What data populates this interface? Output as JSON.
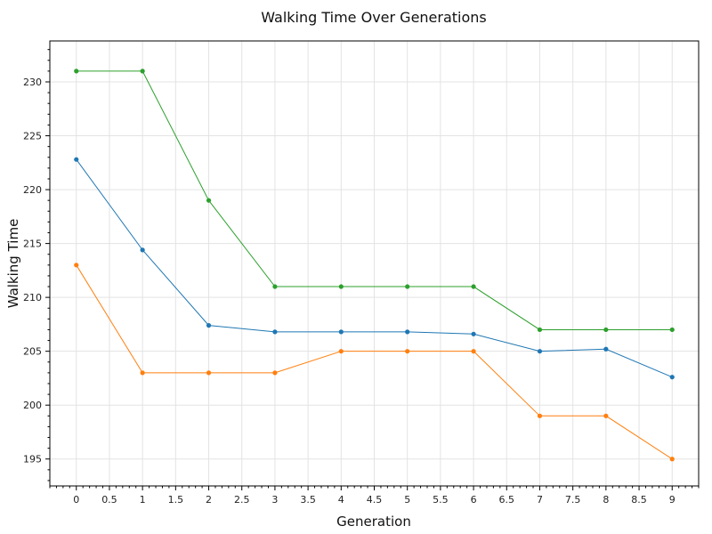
{
  "chart_data": {
    "type": "line",
    "title": "Walking Time Over Generations",
    "xlabel": "Generation",
    "ylabel": "Walking Time",
    "x": [
      0,
      1,
      2,
      3,
      4,
      5,
      6,
      7,
      8,
      9
    ],
    "xlim": [
      -0.4,
      9.4
    ],
    "ylim": [
      192.5,
      233.8
    ],
    "x_ticks": [
      0,
      0.5,
      1,
      1.5,
      2,
      2.5,
      3,
      3.5,
      4,
      4.5,
      5,
      5.5,
      6,
      6.5,
      7,
      7.5,
      8,
      8.5,
      9
    ],
    "y_ticks": [
      195,
      200,
      205,
      210,
      215,
      220,
      225,
      230
    ],
    "grid": true,
    "series": [
      {
        "color": "#2ca02c",
        "values": [
          231,
          231,
          219,
          211,
          211,
          211,
          211,
          207,
          207,
          207
        ]
      },
      {
        "color": "#1f77b4",
        "values": [
          222.8,
          214.4,
          207.4,
          206.8,
          206.8,
          206.8,
          206.6,
          205,
          205.2,
          202.6
        ]
      },
      {
        "color": "#ff7f0e",
        "values": [
          213,
          203,
          203,
          203,
          205,
          205,
          205,
          199,
          199,
          195
        ]
      }
    ]
  }
}
